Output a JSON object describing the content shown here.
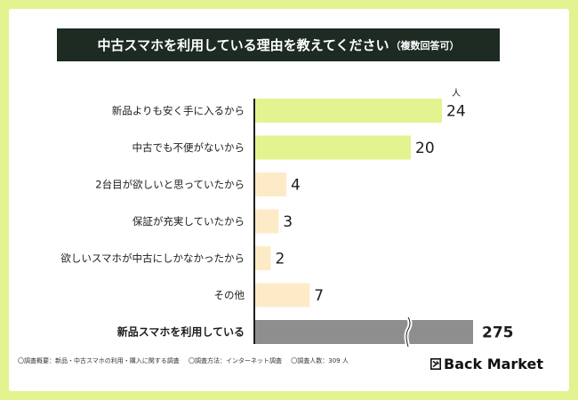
{
  "title": {
    "main": "中古スマホを利用している理由を教えてください",
    "sub": "（複数回答可）"
  },
  "colors": {
    "page_bg": "#e3f38f",
    "title_bg": "#1d2b22",
    "bar_top": "#e3f38f",
    "bar_other": "#fdebc8",
    "bar_new": "#8e8e8e"
  },
  "chart_data": {
    "type": "bar",
    "orientation": "horizontal",
    "unit": "人",
    "categories": [
      "新品よりも安く手に入るから",
      "中古でも不便がないから",
      "2台目が欲しいと思っていたから",
      "保証が充実していたから",
      "欲しいスマホが中古にしかなかったから",
      "その他",
      "新品スマホを利用している"
    ],
    "values": [
      24,
      20,
      4,
      3,
      2,
      7,
      275
    ],
    "value_labels": [
      "24",
      "20",
      "4",
      "3",
      "2",
      "7",
      "275"
    ],
    "axis_break_on_last": true
  },
  "footnotes": [
    "〇調査概要：新品・中古スマホの利用・購入に関する調査",
    "〇調査方法：インターネット調査",
    "〇調査人数：309 人"
  ],
  "brand": {
    "name": "Back Market",
    "icon": "back-market-logo-icon"
  }
}
